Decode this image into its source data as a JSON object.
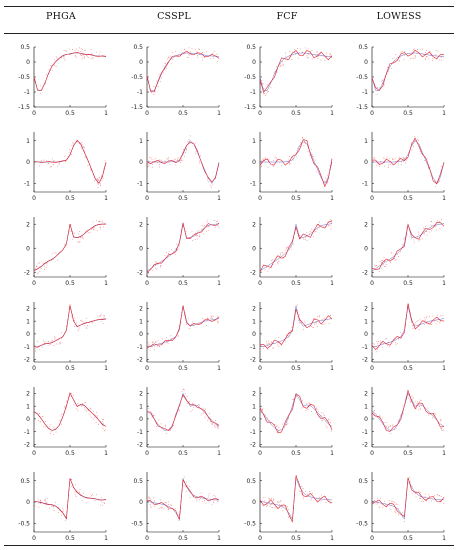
{
  "table": {
    "columns": [
      "PHGA",
      "CSSPL",
      "FCF",
      "LOWESS"
    ]
  },
  "colors": {
    "fit": "#e0202a",
    "truth": "#6a6fd0",
    "noise": "#f08080",
    "axis": "#000000"
  },
  "chart_data": [
    {
      "type": "line",
      "row": 1,
      "x": [
        0,
        0.05,
        0.1,
        0.15,
        0.2,
        0.25,
        0.3,
        0.35,
        0.4,
        0.45,
        0.5,
        0.55,
        0.6,
        0.65,
        0.7,
        0.75,
        0.8,
        0.85,
        0.9,
        0.95,
        1
      ],
      "series": [
        {
          "values": [
            -0.5,
            -0.95,
            -0.95,
            -0.7,
            -0.4,
            -0.15,
            0.02,
            0.13,
            0.2,
            0.25,
            0.28,
            0.3,
            0.3,
            0.29,
            0.27,
            0.25,
            0.23,
            0.21,
            0.2,
            0.19,
            0.18
          ]
        }
      ],
      "yticks": [
        "0.5",
        "0",
        "-0.5",
        "-1",
        "-1.5"
      ],
      "xticks": [
        "0",
        "0.5",
        "1"
      ],
      "ylim": [
        -1.5,
        0.5
      ],
      "xlim": [
        0,
        1
      ]
    },
    {
      "type": "line",
      "row": 2,
      "x": [
        0,
        0.05,
        0.1,
        0.15,
        0.2,
        0.25,
        0.3,
        0.35,
        0.4,
        0.45,
        0.5,
        0.55,
        0.6,
        0.65,
        0.7,
        0.75,
        0.8,
        0.85,
        0.9,
        0.95,
        1
      ],
      "series": [
        {
          "values": [
            0,
            0,
            0,
            0,
            0,
            0,
            0,
            0.01,
            0.03,
            0.1,
            0.35,
            0.75,
            1.0,
            0.85,
            0.45,
            0.05,
            -0.35,
            -0.75,
            -1.0,
            -0.7,
            0
          ]
        }
      ],
      "yticks": [
        "1",
        "0",
        "-1"
      ],
      "xticks": [
        "0",
        "0.5",
        "1"
      ],
      "ylim": [
        -1.4,
        1.4
      ],
      "xlim": [
        0,
        1
      ]
    },
    {
      "type": "line",
      "row": 3,
      "x": [
        0,
        0.05,
        0.1,
        0.15,
        0.2,
        0.25,
        0.3,
        0.35,
        0.4,
        0.45,
        0.5,
        0.55,
        0.6,
        0.65,
        0.7,
        0.75,
        0.8,
        0.85,
        0.9,
        0.95,
        1
      ],
      "series": [
        {
          "values": [
            -1.9,
            -1.7,
            -1.5,
            -1.3,
            -1.1,
            -0.9,
            -0.7,
            -0.45,
            -0.15,
            0.4,
            2.0,
            0.9,
            0.9,
            1.0,
            1.2,
            1.45,
            1.7,
            1.9,
            1.95,
            2.0,
            2.05
          ]
        }
      ],
      "yticks": [
        "2",
        "0",
        "-2"
      ],
      "xticks": [
        "0",
        "0.5",
        "1"
      ],
      "ylim": [
        -2.4,
        2.6
      ],
      "xlim": [
        0,
        1
      ]
    },
    {
      "type": "line",
      "row": 4,
      "x": [
        0,
        0.05,
        0.1,
        0.15,
        0.2,
        0.25,
        0.3,
        0.35,
        0.4,
        0.45,
        0.5,
        0.55,
        0.6,
        0.65,
        0.7,
        0.75,
        0.8,
        0.85,
        0.9,
        0.95,
        1
      ],
      "series": [
        {
          "values": [
            -1.0,
            -1.0,
            -0.9,
            -0.8,
            -0.75,
            -0.65,
            -0.55,
            -0.4,
            -0.2,
            0.3,
            2.2,
            1.0,
            0.6,
            0.7,
            0.8,
            0.9,
            1.0,
            1.05,
            1.1,
            1.15,
            1.2
          ]
        }
      ],
      "yticks": [
        "2",
        "1",
        "0",
        "-1",
        "-2"
      ],
      "xticks": [
        "0",
        "0.5",
        "1"
      ],
      "ylim": [
        -2.2,
        2.5
      ],
      "xlim": [
        0,
        1
      ]
    },
    {
      "type": "line",
      "row": 5,
      "x": [
        0,
        0.05,
        0.1,
        0.15,
        0.2,
        0.25,
        0.3,
        0.35,
        0.4,
        0.45,
        0.5,
        0.55,
        0.6,
        0.65,
        0.7,
        0.75,
        0.8,
        0.85,
        0.9,
        0.95,
        1
      ],
      "series": [
        {
          "values": [
            0.6,
            0.4,
            0.0,
            -0.4,
            -0.7,
            -0.9,
            -0.85,
            -0.5,
            0.2,
            1.0,
            2.0,
            1.5,
            1.0,
            1.1,
            1.05,
            0.8,
            0.5,
            0.2,
            -0.1,
            -0.4,
            -0.6
          ]
        }
      ],
      "yticks": [
        "2",
        "1",
        "0",
        "-1",
        "-2"
      ],
      "xticks": [
        "0",
        "0.5",
        "1"
      ],
      "ylim": [
        -2.2,
        2.5
      ],
      "xlim": [
        0,
        1
      ]
    },
    {
      "type": "line",
      "row": 6,
      "x": [
        0,
        0.05,
        0.1,
        0.15,
        0.2,
        0.25,
        0.3,
        0.35,
        0.4,
        0.45,
        0.5,
        0.55,
        0.6,
        0.65,
        0.7,
        0.75,
        0.8,
        0.85,
        0.9,
        0.95,
        1
      ],
      "series": [
        {
          "values": [
            0.02,
            0.0,
            -0.02,
            -0.03,
            -0.05,
            -0.07,
            -0.1,
            -0.15,
            -0.25,
            -0.4,
            0.55,
            0.35,
            0.22,
            0.15,
            0.12,
            0.1,
            0.08,
            0.07,
            0.06,
            0.05,
            0.05
          ]
        }
      ],
      "yticks": [
        "0.5",
        "0",
        "-0.5"
      ],
      "xticks": [
        "0",
        "0.5",
        "1"
      ],
      "ylim": [
        -0.7,
        0.7
      ],
      "xlim": [
        0,
        1
      ]
    }
  ]
}
